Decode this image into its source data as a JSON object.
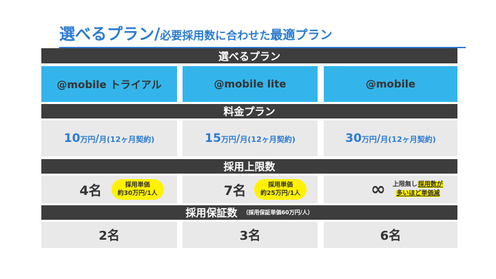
{
  "title": {
    "main": "選べるプラン",
    "sep": "/",
    "sub_prefix": "必要採用数に合わせた",
    "sub_emph": "最適プラン"
  },
  "headers": {
    "plans": "選べるプラン",
    "pricing": "料金プラン",
    "hire_limit": "採用上限数",
    "guarantee": "採用保証数",
    "guarantee_note": "（採用保証単価60万円/人）"
  },
  "plans": [
    {
      "name": "@mobile トライアル",
      "price_num": "10",
      "price_unit": "万円",
      "price_slash": "/",
      "price_period": "月",
      "price_term": "(12ヶ月契約)",
      "limit": "4名",
      "unit_price_l1": "採用単価",
      "unit_price_l2": "約30万円/1人",
      "guarantee": "2名"
    },
    {
      "name": "@mobile lite",
      "price_num": "15",
      "price_unit": "万円",
      "price_slash": "/",
      "price_period": "月",
      "price_term": "(12ヶ月契約)",
      "limit": "7名",
      "unit_price_l1": "採用単価",
      "unit_price_l2": "約25万円/1人",
      "guarantee": "3名"
    },
    {
      "name": "@mobile",
      "price_num": "30",
      "price_unit": "万円",
      "price_slash": "/",
      "price_period": "月",
      "price_term": "(12ヶ月契約)",
      "limit": "∞",
      "note_l1a": "上限無し",
      "note_l1b": "採用数が",
      "note_l2": "多いほど単価減",
      "guarantee": "6名"
    }
  ],
  "colors": {
    "accent_blue": "#2b7bd0",
    "plan_blue": "#33b5ec",
    "header_dark": "#3d3d3d",
    "cell_gray": "#e9e9e9",
    "highlight_yellow": "#fff200"
  }
}
